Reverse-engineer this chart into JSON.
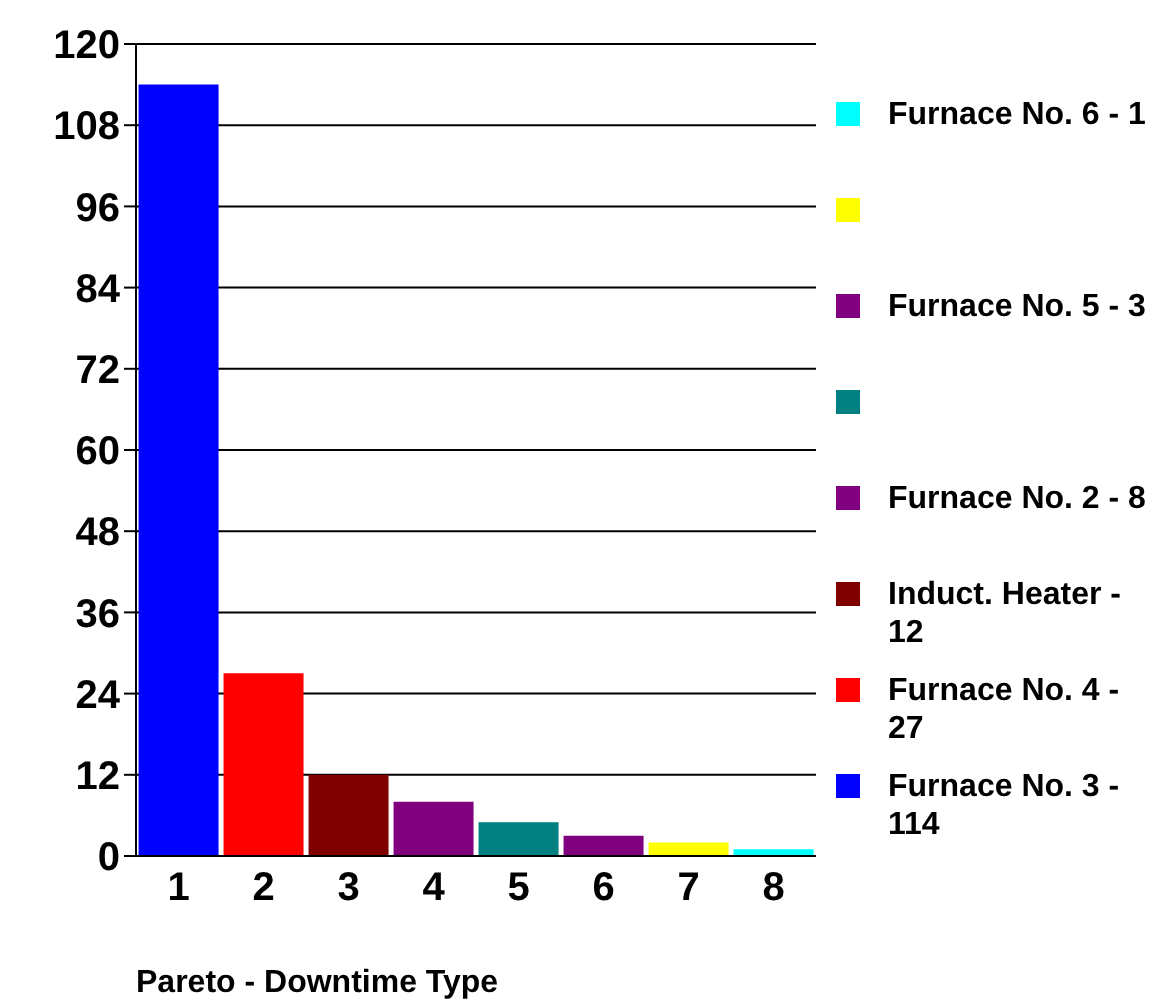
{
  "chart_data": {
    "type": "bar",
    "xlabel": "Pareto - Downtime Type",
    "categories": [
      "1",
      "2",
      "3",
      "4",
      "5",
      "6",
      "7",
      "8"
    ],
    "stacked": true,
    "ylim": [
      0,
      120
    ],
    "yticks": [
      0,
      12,
      24,
      36,
      48,
      60,
      72,
      84,
      96,
      108,
      120
    ],
    "grid": "y",
    "legend": "right",
    "series": [
      {
        "name": "Furnace No. 6 -  1",
        "color": "#00ffff",
        "values": [
          null,
          null,
          null,
          null,
          null,
          null,
          null,
          1
        ]
      },
      {
        "color": "#ffff00",
        "values": [
          null,
          null,
          null,
          null,
          null,
          null,
          2,
          null
        ]
      },
      {
        "name": "Furnace No. 5 - 3",
        "color": "#800080",
        "values": [
          null,
          null,
          null,
          null,
          null,
          3,
          null,
          null
        ]
      },
      {
        "color": "#008080",
        "values": [
          null,
          null,
          null,
          null,
          5,
          null,
          null,
          null
        ]
      },
      {
        "name": "Furnace No. 2 - 8",
        "color": "#800080",
        "values": [
          null,
          null,
          null,
          8,
          null,
          null,
          null,
          null
        ]
      },
      {
        "name": "Induct. Heater - 12",
        "color": "#800000",
        "values": [
          null,
          null,
          12,
          null,
          null,
          null,
          null,
          null
        ]
      },
      {
        "name": "Furnace No. 4 - 27",
        "color": "#ff0000",
        "values": [
          null,
          27,
          null,
          null,
          null,
          null,
          null,
          null
        ]
      },
      {
        "name": "Furnace No. 3 - 114",
        "color": "#0000ff",
        "values": [
          114,
          null,
          null,
          null,
          null,
          null,
          null,
          null
        ]
      }
    ]
  }
}
